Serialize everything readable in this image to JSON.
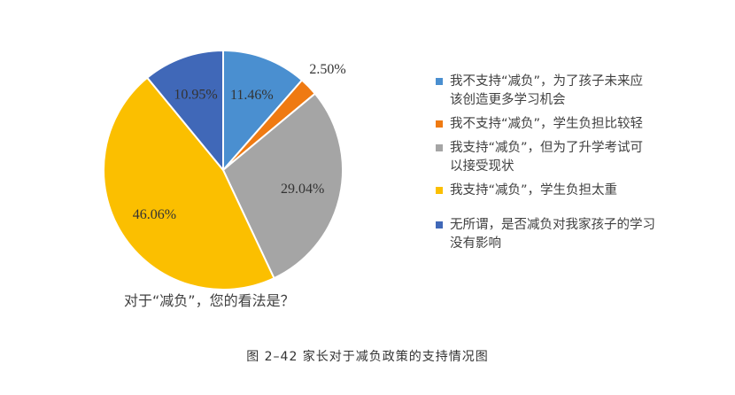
{
  "chart_data": {
    "type": "pie",
    "title": "对于“减负”，您的看法是？",
    "legend_position": "right",
    "slices": [
      {
        "label": "我不支持“减负”，为了孩子未来应该创造更多学习机会",
        "value": 11.46,
        "display": "11.46%",
        "color": "#4a8fd0"
      },
      {
        "label": "我不支持“减负”，学生负担比较轻",
        "value": 2.5,
        "display": "2.50%",
        "color": "#ef7a12"
      },
      {
        "label": "我支持“减负”，但为了升学考试可以接受现状",
        "value": 29.04,
        "display": "29.04%",
        "color": "#a5a5a5"
      },
      {
        "label": "我支持“减负”，学生负担太重",
        "value": 46.06,
        "display": "46.06%",
        "color": "#fbbf00"
      },
      {
        "label": "无所谓，是否减负对我家孩子的学习没有影响",
        "value": 10.95,
        "display": "10.95%",
        "color": "#4068b8"
      }
    ]
  },
  "caption": "图 2–42    家长对于减负政策的支持情况图"
}
